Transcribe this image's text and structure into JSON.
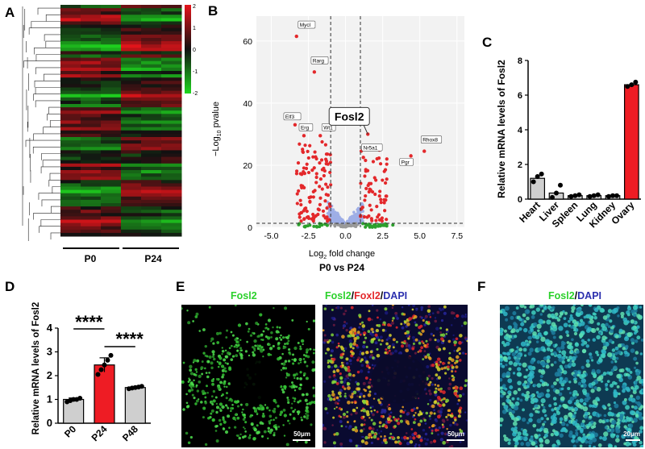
{
  "panels": {
    "A": {
      "letter": "A",
      "groups": [
        "P0",
        "P24"
      ],
      "colorbar_ticks": [
        "2",
        "1",
        "0",
        "-1",
        "-2"
      ],
      "colors": {
        "high": "#e5141a",
        "mid": "#111111",
        "low": "#1fd81f"
      }
    },
    "B": {
      "letter": "B",
      "subtitle": "P0 vs P24",
      "callout": "Fosl2",
      "xlabel_main": "Log",
      "xlabel_sub": "2",
      "xlabel_rest": " fold change",
      "ylabel_pre": "−Log",
      "ylabel_sub": "10",
      "ylabel_post": " pvalue",
      "colors": {
        "sig": "#e3282b",
        "fc_only": "#2ca02c",
        "p_only": "#9eaee6",
        "ns": "#999999"
      }
    },
    "C": {
      "letter": "C"
    },
    "D": {
      "letter": "D",
      "sig_marks": [
        "****",
        "****"
      ]
    },
    "E": {
      "letter": "E",
      "title_left": "Fosl2",
      "title_right_parts": [
        "Fosl2",
        "/",
        "Foxl2",
        "/",
        "DAPI"
      ],
      "scalebar": "50μm"
    },
    "F": {
      "letter": "F",
      "title_parts": [
        "Fosl2",
        "/",
        "DAPI"
      ],
      "scalebar": "20μm"
    }
  },
  "chart_data": [
    {
      "panel": "B",
      "type": "scatter",
      "title": "",
      "xlabel": "Log2 fold change",
      "ylabel": "−Log10 pvalue",
      "xlim": [
        -6,
        8
      ],
      "ylim": [
        0,
        68
      ],
      "xticks": [
        "-5.0",
        "-2.5",
        "0.0",
        "2.5",
        "5.0",
        "7.5"
      ],
      "yticks": [
        "0",
        "20",
        "40",
        "60"
      ],
      "thresholds": {
        "fc": [
          -1,
          1
        ],
        "p": 1.3
      },
      "labeled_points": [
        {
          "label": "Mycl",
          "x": -3.3,
          "y": 61.5
        },
        {
          "label": "Rarg",
          "x": -2.1,
          "y": 50.0
        },
        {
          "label": "Elf3",
          "x": -3.4,
          "y": 33.0
        },
        {
          "label": "Erg",
          "x": -2.8,
          "y": 29.5
        },
        {
          "label": "Wt1",
          "x": -1.7,
          "y": 29.5
        },
        {
          "label": "Fosl2",
          "x": 1.5,
          "y": 30.0
        },
        {
          "label": "Nr5a1",
          "x": 1.2,
          "y": 22.5
        },
        {
          "label": "Pgr",
          "x": 4.4,
          "y": 23.0
        },
        {
          "label": "Rhox8",
          "x": 5.3,
          "y": 24.5
        }
      ],
      "grid": true
    },
    {
      "panel": "C",
      "type": "bar",
      "title": "",
      "categories": [
        "Heart",
        "Liver",
        "Spleen",
        "Lung",
        "Kidney",
        "Ovary"
      ],
      "values": [
        1.2,
        0.35,
        0.2,
        0.2,
        0.2,
        6.6
      ],
      "points": [
        [
          1.0,
          1.3,
          1.45
        ],
        [
          0.1,
          0.35,
          0.8
        ],
        [
          0.15,
          0.2,
          0.25
        ],
        [
          0.15,
          0.2,
          0.25
        ],
        [
          0.15,
          0.2,
          0.2
        ],
        [
          6.5,
          6.6,
          6.75
        ]
      ],
      "highlight": "Ovary",
      "colors": {
        "bar": "#cfcfcf",
        "highlight": "#ee1c24"
      },
      "xlabel": "",
      "ylabel": "Relative mRNA levels of Fosl2",
      "yticks": [
        "0",
        "2",
        "4",
        "6",
        "8"
      ],
      "ylim": [
        0,
        8
      ]
    },
    {
      "panel": "D",
      "type": "bar",
      "title": "",
      "categories": [
        "P0",
        "P24",
        "P48"
      ],
      "values": [
        1.0,
        2.45,
        1.5
      ],
      "points": [
        [
          0.9,
          0.95,
          1.0,
          1.0,
          1.05
        ],
        [
          2.05,
          2.25,
          2.45,
          2.65,
          2.85
        ],
        [
          1.45,
          1.48,
          1.5,
          1.52,
          1.55
        ]
      ],
      "errors": [
        0.06,
        0.3,
        0.04
      ],
      "highlight": "P24",
      "colors": {
        "bar": "#cfcfcf",
        "highlight": "#ee1c24"
      },
      "xlabel": "",
      "ylabel": "Relative mRNA  levels of Fosl2",
      "yticks": [
        "0",
        "1",
        "2",
        "3",
        "4"
      ],
      "ylim": [
        0,
        4
      ],
      "significance": [
        {
          "from": "P0",
          "to": "P24",
          "label": "****"
        },
        {
          "from": "P24",
          "to": "P48",
          "label": "****"
        }
      ]
    }
  ]
}
